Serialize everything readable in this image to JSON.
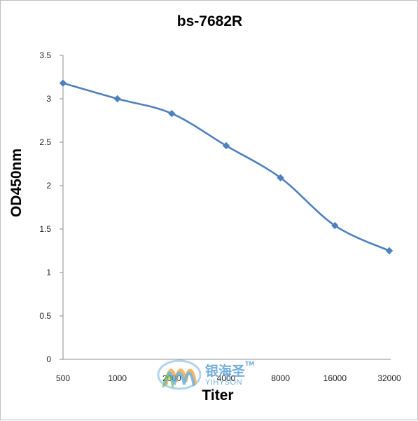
{
  "chart_data": {
    "type": "line",
    "title": "bs-7682R",
    "xlabel": "Titer",
    "ylabel": "OD450nm",
    "categories": [
      "500",
      "1000",
      "2000",
      "4000",
      "8000",
      "16000",
      "32000"
    ],
    "series": [
      {
        "values": [
          3.18,
          3.0,
          2.83,
          2.46,
          2.09,
          1.54,
          1.25
        ]
      }
    ],
    "ylim": [
      0,
      3.5
    ],
    "yticks": [
      "0",
      "0.5",
      "1",
      "1.5",
      "2",
      "2.5",
      "3",
      "3.5"
    ],
    "grid": false,
    "legend": "none",
    "line_color": "#4f81bd",
    "marker": "diamond"
  },
  "watermark": {
    "chinese_text": "银海圣",
    "trademark": "TM",
    "english_text": "YIHYSON"
  }
}
